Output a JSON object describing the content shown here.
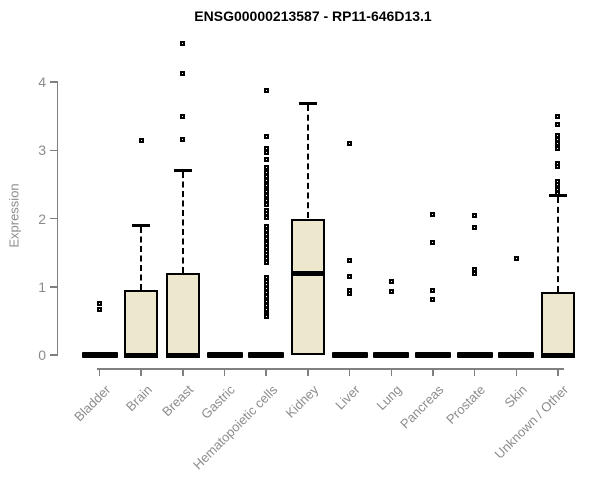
{
  "chart_data": {
    "type": "box",
    "title": "ENSG00000213587 - RP11-646D13.1",
    "ylabel": "Expression",
    "xlabel": "",
    "ylim": [
      0,
      4.7
    ],
    "yticks": [
      0,
      1,
      2,
      3,
      4
    ],
    "grid": false,
    "legend": "none",
    "categories": [
      "Bladder",
      "Brain",
      "Breast",
      "Gastric",
      "Hematopoietic cells",
      "Kidney",
      "Liver",
      "Lung",
      "Pancreas",
      "Prostate",
      "Skin",
      "Unknown / Other"
    ],
    "series": [
      {
        "category": "Bladder",
        "q1": 0,
        "median": 0,
        "q3": 0,
        "whisker_low": 0,
        "whisker_high": 0,
        "outliers": [
          0.76,
          0.67
        ]
      },
      {
        "category": "Brain",
        "q1": 0,
        "median": 0,
        "q3": 0.95,
        "whisker_low": 0,
        "whisker_high": 1.9,
        "outliers": [
          3.15
        ]
      },
      {
        "category": "Breast",
        "q1": 0,
        "median": 0,
        "q3": 1.2,
        "whisker_low": 0,
        "whisker_high": 2.7,
        "outliers": [
          3.16,
          3.5,
          4.13,
          4.57
        ]
      },
      {
        "category": "Gastric",
        "q1": 0,
        "median": 0,
        "q3": 0,
        "whisker_low": 0,
        "whisker_high": 0,
        "outliers": []
      },
      {
        "category": "Hematopoietic cells",
        "q1": 0,
        "median": 0,
        "q3": 0,
        "whisker_low": 0,
        "whisker_high": 0,
        "outliers": [
          3.88,
          3.2,
          3.03,
          2.96,
          2.86,
          2.74,
          2.68,
          2.62,
          2.56,
          2.52,
          2.48,
          2.43,
          2.39,
          2.34,
          2.3,
          2.26,
          2.21,
          2.12,
          2.07,
          2.01,
          1.88,
          1.82,
          1.76,
          1.7,
          1.64,
          1.58,
          1.52,
          1.47,
          1.41,
          1.35,
          1.14,
          1.08,
          1.03,
          0.97,
          0.91,
          0.85,
          0.79,
          0.73,
          0.67,
          0.6,
          0.56
        ]
      },
      {
        "category": "Kidney",
        "q1": 0,
        "median": 1.2,
        "q3": 2.0,
        "whisker_low": 0,
        "whisker_high": 3.68,
        "outliers": []
      },
      {
        "category": "Liver",
        "q1": 0,
        "median": 0,
        "q3": 0,
        "whisker_low": 0,
        "whisker_high": 0,
        "outliers": [
          3.1,
          1.38,
          1.15,
          0.95,
          0.9
        ]
      },
      {
        "category": "Lung",
        "q1": 0,
        "median": 0,
        "q3": 0,
        "whisker_low": 0,
        "whisker_high": 0,
        "outliers": [
          1.07,
          0.93
        ]
      },
      {
        "category": "Pancreas",
        "q1": 0,
        "median": 0,
        "q3": 0,
        "whisker_low": 0,
        "whisker_high": 0,
        "outliers": [
          2.06,
          1.65,
          0.95,
          0.82
        ]
      },
      {
        "category": "Prostate",
        "q1": 0,
        "median": 0,
        "q3": 0,
        "whisker_low": 0,
        "whisker_high": 0,
        "outliers": [
          2.05,
          1.87,
          1.26,
          1.2
        ]
      },
      {
        "category": "Skin",
        "q1": 0,
        "median": 0,
        "q3": 0,
        "whisker_low": 0,
        "whisker_high": 0,
        "outliers": [
          1.42
        ]
      },
      {
        "category": "Unknown / Other",
        "q1": 0,
        "median": 0,
        "q3": 0.93,
        "whisker_low": 0,
        "whisker_high": 2.33,
        "outliers": [
          3.49,
          3.38,
          3.22,
          3.16,
          3.1,
          3.03,
          2.81,
          2.76,
          2.54,
          2.5,
          2.46,
          2.42,
          2.37
        ]
      }
    ],
    "colors": {
      "box_fill": "#EDE7CE",
      "box_border": "#000000",
      "median": "#000000",
      "whisker": "#000000",
      "outlier": "#000000",
      "axis": "#808080",
      "tick_text": "#8c8c8c",
      "title_text": "#000000"
    }
  }
}
